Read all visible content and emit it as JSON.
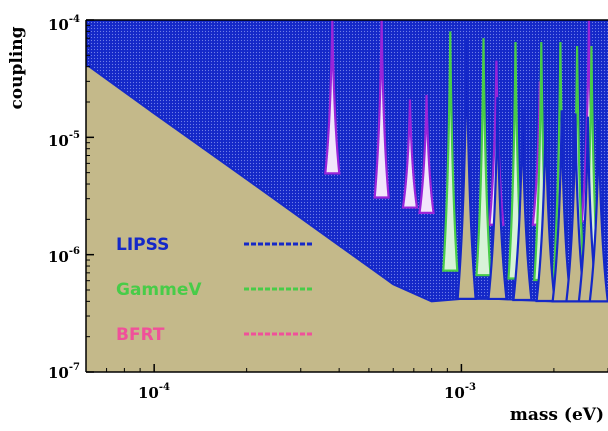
{
  "chart_data": {
    "type": "line",
    "xlabel": "mass (eV)",
    "ylabel": "coupling",
    "xscale": "log",
    "yscale": "log",
    "xlim": [
      6e-05,
      0.003
    ],
    "ylim": [
      1e-07,
      0.0001
    ],
    "x_ticks": [
      {
        "base": "10",
        "exp": "-4"
      },
      {
        "base": "10",
        "exp": "-3"
      }
    ],
    "y_ticks": [
      {
        "base": "10",
        "exp": "-4",
        "value": 0.0001
      },
      {
        "base": "10",
        "exp": "-5",
        "value": 1e-05
      },
      {
        "base": "10",
        "exp": "-6",
        "value": 1e-06
      },
      {
        "base": "10",
        "exp": "-7",
        "value": 1e-07
      }
    ],
    "colors": {
      "background": "#c4b98a",
      "LIPSS": "#1428c8",
      "GammeV": "#48cc48",
      "BFRT": "#9a24d8",
      "BFRT_label": "#f0509a"
    },
    "legend": {
      "placement": "bottom-left",
      "entries": [
        {
          "name": "LIPSS",
          "color": "#1428c8"
        },
        {
          "name": "GammeV",
          "color": "#48cc48"
        },
        {
          "name": "BFRT",
          "color": "#f0509a"
        }
      ]
    },
    "series": [
      {
        "name": "LIPSS",
        "color": "#1428c8",
        "x": [
          6e-05,
          0.0001,
          0.0002,
          0.0004,
          0.0006,
          0.0008,
          0.001,
          0.0013,
          0.0016,
          0.002,
          0.0025,
          0.003
        ],
        "y": [
          4.2e-05,
          1.6e-05,
          4.4e-06,
          1.2e-06,
          5.6e-07,
          4e-07,
          4.2e-07,
          4.2e-07,
          4.1e-07,
          4e-07,
          4e-07,
          4e-07
        ],
        "resonance_peaks": [
          {
            "x": 0.00104,
            "y": 7e-05
          },
          {
            "x": 0.00131,
            "y": 2.2e-05
          },
          {
            "x": 0.00158,
            "y": 1.8e-05
          },
          {
            "x": 0.00188,
            "y": 1.8e-05
          },
          {
            "x": 0.00212,
            "y": 1.7e-05
          },
          {
            "x": 0.00235,
            "y": 1.6e-05
          },
          {
            "x": 0.00258,
            "y": 1.5e-05
          },
          {
            "x": 0.0028,
            "y": 1.4e-05
          }
        ]
      },
      {
        "name": "GammeV",
        "color": "#48cc48",
        "x": [
          6e-05,
          0.0001,
          0.0002,
          0.0004,
          0.0006,
          0.0008,
          0.001,
          0.0013,
          0.0016,
          0.002,
          0.0025,
          0.003
        ],
        "y": [
          8e-05,
          3e-05,
          8e-06,
          2.2e-06,
          1.05e-06,
          7.5e-07,
          7.2e-07,
          6.4e-07,
          6.2e-07,
          6e-07,
          6e-07,
          6e-07
        ],
        "resonance_peaks": [
          {
            "x": 0.00092,
            "y": 8e-05
          },
          {
            "x": 0.00118,
            "y": 7e-05
          },
          {
            "x": 0.0015,
            "y": 6.5e-05
          },
          {
            "x": 0.00182,
            "y": 6.5e-05
          },
          {
            "x": 0.0021,
            "y": 6.5e-05
          },
          {
            "x": 0.00238,
            "y": 6e-05
          },
          {
            "x": 0.00265,
            "y": 6e-05
          }
        ]
      },
      {
        "name": "BFRT",
        "color": "#9a24d8",
        "x": [
          6e-05,
          0.0001,
          0.0002,
          0.0003,
          0.0004,
          0.0005,
          0.0006,
          0.0008,
          0.001,
          0.0013,
          0.0016,
          0.002,
          0.0025,
          0.003
        ],
        "y": [
          0.0001,
          5.2e-05,
          1.6e-05,
          6.8e-06,
          4.6e-06,
          3.4e-06,
          2.8e-06,
          2.2e-06,
          1.9e-06,
          1.8e-06,
          1.8e-06,
          1.8e-06,
          1.9e-06,
          2e-06
        ],
        "resonance_peaks": [
          {
            "x": 0.00038,
            "y": 0.0001
          },
          {
            "x": 0.00055,
            "y": 0.0001
          },
          {
            "x": 0.00068,
            "y": 2.1e-05
          },
          {
            "x": 0.00077,
            "y": 2.3e-05
          },
          {
            "x": 0.0013,
            "y": 4.5e-05
          },
          {
            "x": 0.0018,
            "y": 3e-05
          },
          {
            "x": 0.0026,
            "y": 0.0001
          }
        ]
      }
    ]
  }
}
